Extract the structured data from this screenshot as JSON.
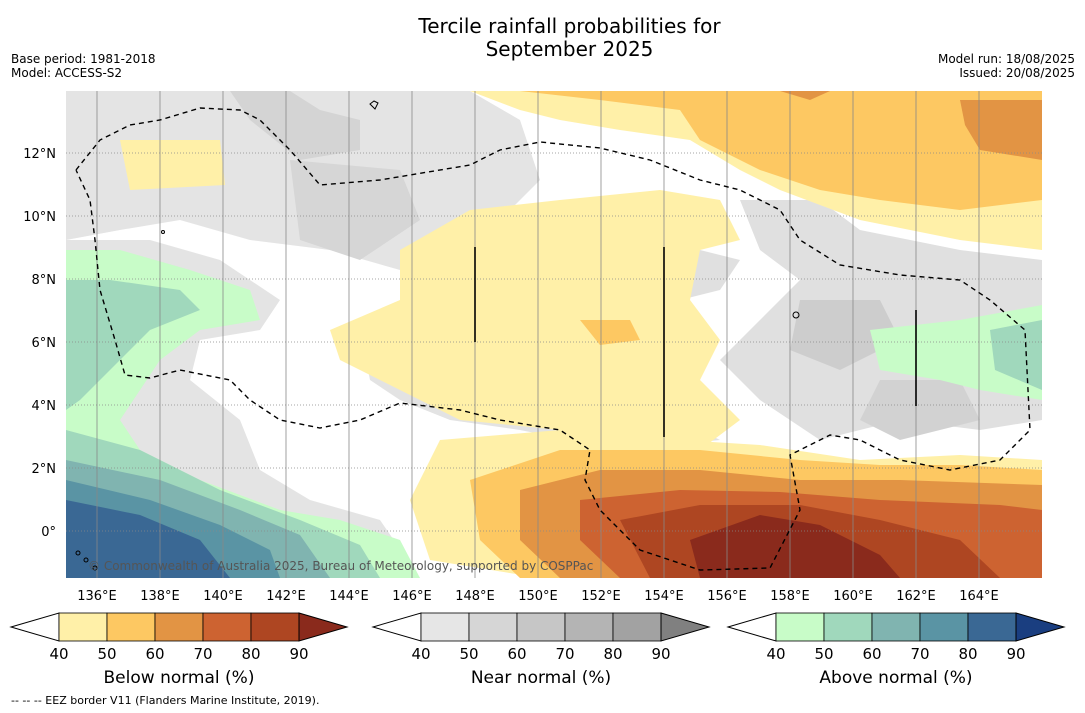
{
  "header": {
    "title_line1": "Tercile rainfall probabilities for",
    "title_line2": "September 2025",
    "base_period": "Base period: 1981-2018",
    "model": "Model: ACCESS-S2",
    "model_run": "Model run: 18/08/2025",
    "issued": "Issued: 20/08/2025"
  },
  "map": {
    "lat_labels": [
      "12°N",
      "10°N",
      "8°N",
      "6°N",
      "4°N",
      "2°N",
      "0°"
    ],
    "lon_labels": [
      "136°E",
      "138°E",
      "140°E",
      "142°E",
      "144°E",
      "146°E",
      "148°E",
      "150°E",
      "152°E",
      "154°E",
      "156°E",
      "158°E",
      "160°E",
      "162°E",
      "164°E"
    ],
    "copyright": "© Commonwealth of Australia 2025, Bureau of Meteorology, supported by COSPPac"
  },
  "colorbars": [
    {
      "label": "Below normal (%)",
      "ticks": [
        "40",
        "50",
        "60",
        "70",
        "80",
        "90"
      ],
      "colors": [
        "#ffffff",
        "#fff0a8",
        "#fdc862",
        "#e29444",
        "#cd6331",
        "#ae4622",
        "#8a2a1c"
      ]
    },
    {
      "label": "Near normal (%)",
      "ticks": [
        "40",
        "50",
        "60",
        "70",
        "80",
        "90"
      ],
      "colors": [
        "#ffffff",
        "#e6e6e6",
        "#d6d6d6",
        "#c6c6c6",
        "#b4b4b4",
        "#a2a2a2",
        "#808080"
      ]
    },
    {
      "label": "Above normal (%)",
      "ticks": [
        "40",
        "50",
        "60",
        "70",
        "80",
        "90"
      ],
      "colors": [
        "#ffffff",
        "#c8fcc8",
        "#a0d8bc",
        "#80b4b0",
        "#5a94a4",
        "#3a6894",
        "#1a3e80"
      ]
    }
  ],
  "footer": "--  --  -- EEZ border V11 (Flanders Marine Institute, 2019)."
}
